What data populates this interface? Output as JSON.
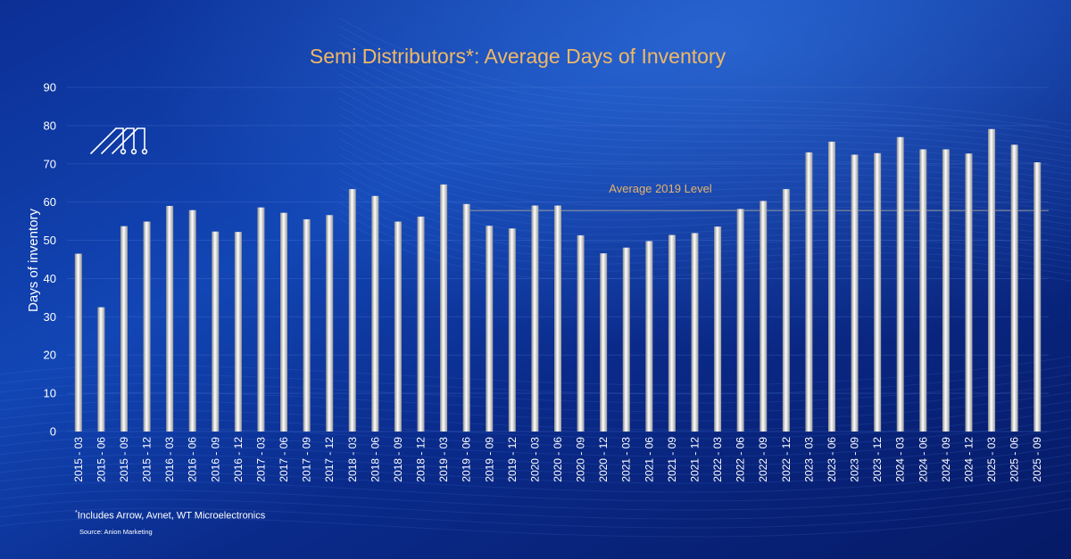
{
  "colors": {
    "background_dark": "#071c6b",
    "background_mid": "#0b2f96",
    "background_light": "#1f5fcf",
    "title": "#f0b866",
    "text": "#ffffff",
    "bar_light": "#ffffff",
    "bar_dark": "#8c8c8c",
    "reference_line": "#9a9a9a",
    "reference_label": "#e6b36a"
  },
  "logo": {
    "icon": "anion-marketing-logo-icon"
  },
  "footnote": {
    "marker": "*",
    "text": "Includes Arrow, Avnet, WT Microelectronics"
  },
  "source": "Source: Anion Marketing",
  "chart_data": {
    "type": "bar",
    "title": "Semi Distributors*: Average Days of Inventory",
    "xlabel": "",
    "ylabel": "Days of inventory",
    "ylim": [
      0,
      90
    ],
    "yticks": [
      0,
      10,
      20,
      30,
      40,
      50,
      60,
      70,
      80,
      90
    ],
    "grid": true,
    "legend": "none",
    "categories": [
      "2015 - 03",
      "2015 - 06",
      "2015 - 09",
      "2015 - 12",
      "2016 - 03",
      "2016 - 06",
      "2016 - 09",
      "2016 - 12",
      "2017 - 03",
      "2017 - 06",
      "2017 - 09",
      "2017 - 12",
      "2018 - 03",
      "2018 - 06",
      "2018 - 09",
      "2018 - 12",
      "2019 - 03",
      "2019 - 06",
      "2019 - 09",
      "2019 - 12",
      "2020 - 03",
      "2020 - 06",
      "2020 - 09",
      "2020 - 12",
      "2021 - 03",
      "2021 - 06",
      "2021 - 09",
      "2021 - 12",
      "2022 - 03",
      "2022 - 06",
      "2022 - 09",
      "2022 - 12",
      "2023 - 03",
      "2023 - 06",
      "2023 - 09",
      "2023 - 12",
      "2024 - 03",
      "2024 - 06",
      "2024 - 09",
      "2024 - 12",
      "2025 - 03",
      "2025 - 06",
      "2025 - 09"
    ],
    "values": [
      46.5,
      32.5,
      53.7,
      54.9,
      59.0,
      57.9,
      52.3,
      52.2,
      58.6,
      57.2,
      55.5,
      56.6,
      63.4,
      61.6,
      54.9,
      56.2,
      64.6,
      59.5,
      53.8,
      53.1,
      59.1,
      59.1,
      51.3,
      46.6,
      48.1,
      49.8,
      51.4,
      51.9,
      53.6,
      58.2,
      60.3,
      63.4,
      73.0,
      75.8,
      72.4,
      72.8,
      77.0,
      73.8,
      73.8,
      72.7,
      79.1,
      75.0,
      70.4
    ],
    "reference_line": {
      "label": "Average 2019 Level",
      "value": 57.8,
      "from_category": "2019 - 06"
    }
  }
}
